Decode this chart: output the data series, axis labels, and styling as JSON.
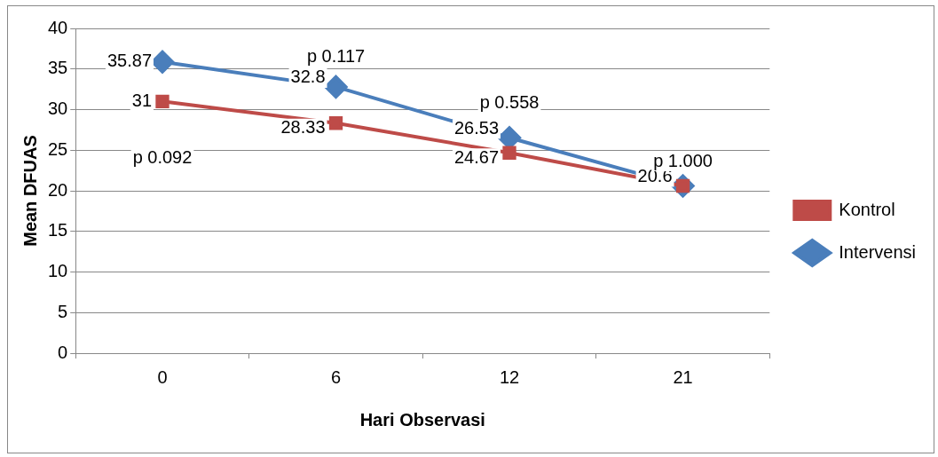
{
  "chart_data": {
    "type": "line",
    "xlabel": "Hari Observasi",
    "ylabel": "Mean DFUAS",
    "categories": [
      "0",
      "6",
      "12",
      "21"
    ],
    "series": [
      {
        "name": "Intervensi",
        "color": "#4a7ebb",
        "marker": "diamond",
        "values": [
          35.87,
          32.8,
          26.53,
          20.6
        ],
        "value_labels": [
          "35.87",
          "32.8",
          "26.53",
          "20.6"
        ]
      },
      {
        "name": "Kontrol",
        "color": "#be4b48",
        "marker": "square",
        "values": [
          31,
          28.33,
          24.67,
          20.6
        ],
        "value_labels": [
          "31",
          "28.33",
          "24.67",
          null
        ]
      }
    ],
    "ylim": [
      0,
      40
    ],
    "yticks": [
      0,
      5,
      10,
      15,
      20,
      25,
      30,
      35,
      40
    ],
    "grid": "y",
    "legend": "right",
    "annotations": [
      "p 0.092",
      "p 0.117",
      "p 0.558",
      "p 1.000"
    ]
  }
}
